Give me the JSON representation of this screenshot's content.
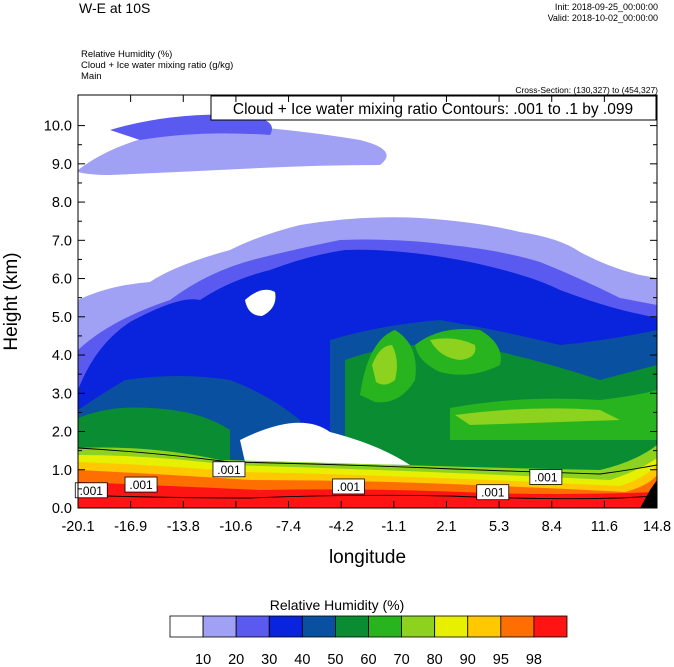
{
  "header": {
    "title": "W-E at 10S",
    "init": "Init: 2018-09-25_00:00:00",
    "valid": "Valid: 2018-10-02_00:00:00",
    "fields": [
      "Relative Humidity   (%)",
      "Cloud + Ice water mixing ratio   (g/kg)",
      "Main"
    ],
    "cross_section": "Cross-Section: (130,327) to (454,327)"
  },
  "chart_data": {
    "type": "heatmap",
    "xlabel": "longitude",
    "ylabel": "Height (km)",
    "x_ticks": [
      "-20.1",
      "-16.9",
      "-13.8",
      "-10.6",
      "-7.4",
      "-4.2",
      "-1.1",
      "2.1",
      "5.3",
      "8.4",
      "11.6",
      "14.8"
    ],
    "xlim": [
      -20.1,
      14.8
    ],
    "y_ticks": [
      "0.0",
      "1.0",
      "2.0",
      "3.0",
      "4.0",
      "5.0",
      "6.0",
      "7.0",
      "8.0",
      "9.0",
      "10.0"
    ],
    "ylim": [
      0.0,
      10.8
    ],
    "contour_legend": "Cloud + Ice water mixing ratio Contours: .001 to .1 by .099",
    "contour_labels": [
      {
        "text": ".001",
        "x": -19.3,
        "y": 0.45
      },
      {
        "text": ".001",
        "x": -16.3,
        "y": 0.6
      },
      {
        "text": ".001",
        "x": -11.0,
        "y": 1.0
      },
      {
        "text": ".001",
        "x": -3.8,
        "y": 0.55
      },
      {
        "text": ".001",
        "x": 4.9,
        "y": 0.4
      },
      {
        "text": ".001",
        "x": 8.1,
        "y": 0.8
      }
    ],
    "colorbar": {
      "title": "Relative Humidity  (%)",
      "levels": [
        "10",
        "20",
        "30",
        "40",
        "50",
        "60",
        "70",
        "80",
        "90",
        "95",
        "98"
      ],
      "colors": [
        "#ffffff",
        "#a0a0f5",
        "#5a5af0",
        "#0a23dc",
        "#0a50a0",
        "#0a8c32",
        "#28b41e",
        "#8cd21e",
        "#e6f000",
        "#ffc800",
        "#ff6e00",
        "#ff1414"
      ]
    }
  }
}
